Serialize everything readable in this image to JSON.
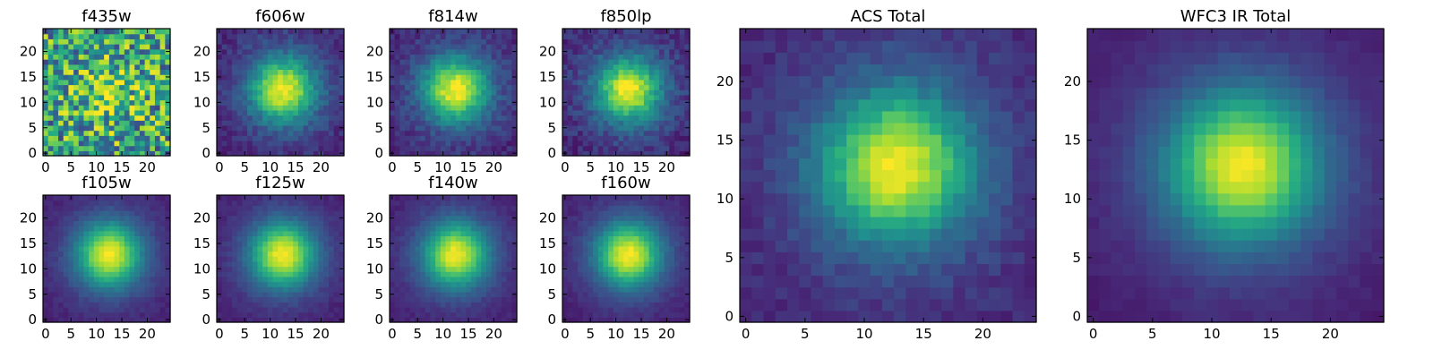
{
  "figure": {
    "colormap": "viridis",
    "background": "#ffffff"
  },
  "chart_data": [
    {
      "type": "heatmap",
      "title": "f435w",
      "grid": [
        25,
        25
      ],
      "noise": 0.38,
      "xticks": [
        0,
        5,
        10,
        15,
        20
      ],
      "yticks": [
        0,
        5,
        10,
        15,
        20
      ],
      "xlim": [
        -0.5,
        24.5
      ],
      "ylim": [
        -0.5,
        24.5
      ],
      "center": [
        12,
        12
      ],
      "peak_level": 0.82,
      "background_level": 0.55
    },
    {
      "type": "heatmap",
      "title": "f606w",
      "grid": [
        25,
        25
      ],
      "noise": 0.07,
      "xticks": [
        0,
        5,
        10,
        15,
        20
      ],
      "yticks": [
        0,
        5,
        10,
        15,
        20
      ],
      "xlim": [
        -0.5,
        24.5
      ],
      "ylim": [
        -0.5,
        24.5
      ],
      "center": [
        12.5,
        12.5
      ],
      "peak_level": 1.0,
      "background_level": 0.08
    },
    {
      "type": "heatmap",
      "title": "f814w",
      "grid": [
        25,
        25
      ],
      "noise": 0.07,
      "xticks": [
        0,
        5,
        10,
        15,
        20
      ],
      "yticks": [
        0,
        5,
        10,
        15,
        20
      ],
      "xlim": [
        -0.5,
        24.5
      ],
      "ylim": [
        -0.5,
        24.5
      ],
      "center": [
        12.5,
        12.5
      ],
      "peak_level": 1.0,
      "background_level": 0.08
    },
    {
      "type": "heatmap",
      "title": "f850lp",
      "grid": [
        25,
        25
      ],
      "noise": 0.08,
      "xticks": [
        0,
        5,
        10,
        15,
        20
      ],
      "yticks": [
        0,
        5,
        10,
        15,
        20
      ],
      "xlim": [
        -0.5,
        24.5
      ],
      "ylim": [
        -0.5,
        24.5
      ],
      "center": [
        12.5,
        12.5
      ],
      "peak_level": 1.0,
      "background_level": 0.08
    },
    {
      "type": "heatmap",
      "title": "ACS Total",
      "grid": [
        25,
        25
      ],
      "noise": 0.05,
      "xticks": [
        0,
        5,
        10,
        15,
        20
      ],
      "yticks": [
        0,
        5,
        10,
        15,
        20
      ],
      "xlim": [
        -0.5,
        24.5
      ],
      "ylim": [
        -0.5,
        24.5
      ],
      "center": [
        12.7,
        12.8
      ],
      "peak_level": 1.0,
      "background_level": 0.08
    },
    {
      "type": "heatmap",
      "title": "f105w",
      "grid": [
        25,
        25
      ],
      "noise": 0.03,
      "xticks": [
        0,
        5,
        10,
        15,
        20
      ],
      "yticks": [
        0,
        5,
        10,
        15,
        20
      ],
      "xlim": [
        -0.5,
        24.5
      ],
      "ylim": [
        -0.5,
        24.5
      ],
      "center": [
        12.5,
        12.8
      ],
      "peak_level": 1.0,
      "background_level": 0.06
    },
    {
      "type": "heatmap",
      "title": "f125w",
      "grid": [
        25,
        25
      ],
      "noise": 0.03,
      "xticks": [
        0,
        5,
        10,
        15,
        20
      ],
      "yticks": [
        0,
        5,
        10,
        15,
        20
      ],
      "xlim": [
        -0.5,
        24.5
      ],
      "ylim": [
        -0.5,
        24.5
      ],
      "center": [
        12.5,
        12.8
      ],
      "peak_level": 1.0,
      "background_level": 0.06
    },
    {
      "type": "heatmap",
      "title": "f140w",
      "grid": [
        25,
        25
      ],
      "noise": 0.03,
      "xticks": [
        0,
        5,
        10,
        15,
        20
      ],
      "yticks": [
        0,
        5,
        10,
        15,
        20
      ],
      "xlim": [
        -0.5,
        24.5
      ],
      "ylim": [
        -0.5,
        24.5
      ],
      "center": [
        12.5,
        12.8
      ],
      "peak_level": 1.0,
      "background_level": 0.06
    },
    {
      "type": "heatmap",
      "title": "f160w",
      "grid": [
        25,
        25
      ],
      "noise": 0.03,
      "xticks": [
        0,
        5,
        10,
        15,
        20
      ],
      "yticks": [
        0,
        5,
        10,
        15,
        20
      ],
      "xlim": [
        -0.5,
        24.5
      ],
      "ylim": [
        -0.5,
        24.5
      ],
      "center": [
        12.5,
        12.8
      ],
      "peak_level": 1.0,
      "background_level": 0.06
    },
    {
      "type": "heatmap",
      "title": "WFC3 IR Total",
      "grid": [
        25,
        25
      ],
      "noise": 0.02,
      "xticks": [
        0,
        5,
        10,
        15,
        20
      ],
      "yticks": [
        0,
        5,
        10,
        15,
        20
      ],
      "xlim": [
        -0.5,
        24.5
      ],
      "ylim": [
        -0.5,
        24.5
      ],
      "center": [
        12.6,
        12.8
      ],
      "peak_level": 1.0,
      "background_level": 0.05
    }
  ]
}
